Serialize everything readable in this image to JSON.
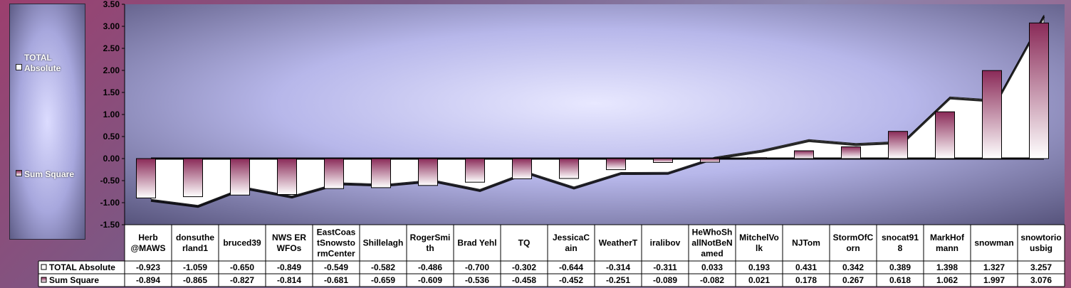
{
  "chart_data": {
    "type": "bar",
    "title": "",
    "xlabel": "",
    "ylabel": "",
    "ylim": [
      -1.5,
      3.5
    ],
    "yticks": [
      "3.50",
      "3.00",
      "2.50",
      "2.00",
      "1.50",
      "1.00",
      "0.50",
      "0.00",
      "-0.50",
      "-1.00",
      "-1.50"
    ],
    "ytick_values": [
      3.5,
      3.0,
      2.5,
      2.0,
      1.5,
      1.0,
      0.5,
      0.0,
      -0.5,
      -1.0,
      -1.5
    ],
    "grid": false,
    "legend_position": "left",
    "categories": [
      [
        "Herb",
        "@MAWS"
      ],
      [
        "donsuthe",
        "rland1"
      ],
      [
        "bruced39"
      ],
      [
        "NWS ER",
        "WFOs"
      ],
      [
        "EastCoas",
        "tSnowsto",
        "rmCenter"
      ],
      [
        "Shillelagh"
      ],
      [
        "RogerSmi",
        "th"
      ],
      [
        "Brad Yehl"
      ],
      [
        "TQ"
      ],
      [
        "JessicaC",
        "ain"
      ],
      [
        "WeatherT"
      ],
      [
        "iralibov"
      ],
      [
        "HeWhoSh",
        "allNotBeN",
        "amed"
      ],
      [
        "MitchelVo",
        "lk"
      ],
      [
        "NJTom"
      ],
      [
        "StormOfC",
        "orn"
      ],
      [
        "snocat91",
        "8"
      ],
      [
        "MarkHof",
        "mann"
      ],
      [
        "snowman"
      ],
      [
        "snowtorio",
        "usbig"
      ]
    ],
    "series": [
      {
        "name": "TOTAL Absolute",
        "render": "area",
        "values": [
          -0.923,
          -1.059,
          -0.65,
          -0.849,
          -0.549,
          -0.582,
          -0.486,
          -0.7,
          -0.302,
          -0.644,
          -0.314,
          -0.311,
          0.033,
          0.193,
          0.431,
          0.342,
          0.389,
          1.398,
          1.327,
          3.257
        ],
        "labels": [
          "-0.923",
          "-1.059",
          "-0.650",
          "-0.849",
          "-0.549",
          "-0.582",
          "-0.486",
          "-0.700",
          "-0.302",
          "-0.644",
          "-0.314",
          "-0.311",
          "0.033",
          "0.193",
          "0.431",
          "0.342",
          "0.389",
          "1.398",
          "1.327",
          "3.257"
        ]
      },
      {
        "name": "Sum Square",
        "render": "bar",
        "values": [
          -0.894,
          -0.865,
          -0.827,
          -0.814,
          -0.681,
          -0.659,
          -0.609,
          -0.536,
          -0.458,
          -0.452,
          -0.251,
          -0.089,
          -0.082,
          0.021,
          0.178,
          0.267,
          0.618,
          1.062,
          1.997,
          3.076
        ],
        "labels": [
          "-0.894",
          "-0.865",
          "-0.827",
          "-0.814",
          "-0.681",
          "-0.659",
          "-0.609",
          "-0.536",
          "-0.458",
          "-0.452",
          "-0.251",
          "-0.089",
          "-0.082",
          "0.021",
          "0.178",
          "0.267",
          "0.618",
          "1.062",
          "1.997",
          "3.076"
        ]
      }
    ],
    "colors": {
      "bar_top": "#8a2a58",
      "bar_bottom": "#ffffff",
      "area_fill": "#ffffff",
      "axis": "#000000"
    }
  }
}
